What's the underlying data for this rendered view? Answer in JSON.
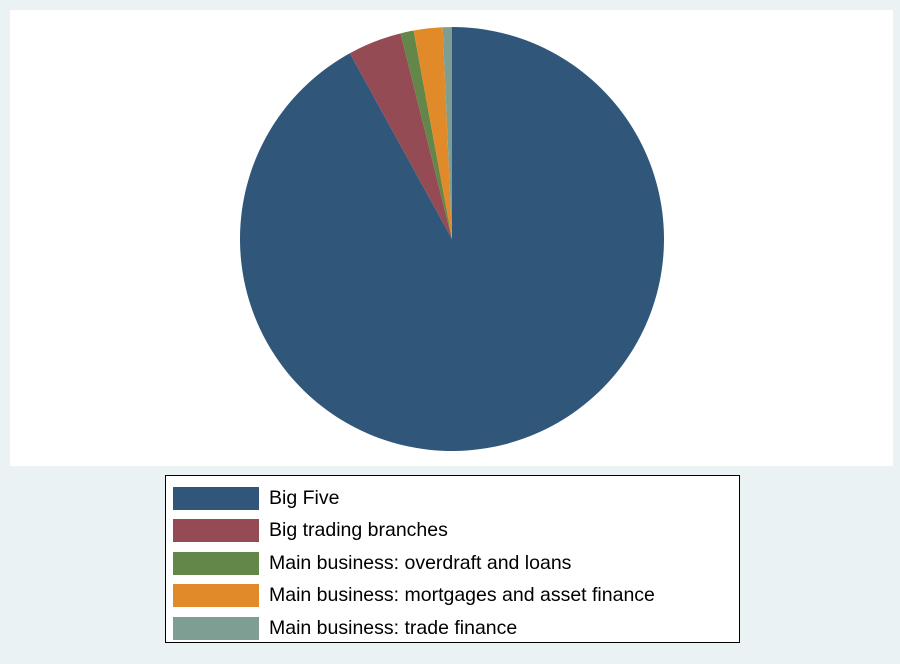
{
  "chart_data": {
    "type": "pie",
    "title": "",
    "slices": [
      {
        "label": "Big Five",
        "value": 92.0,
        "color": "#30577a"
      },
      {
        "label": "Big trading branches",
        "value": 4.1,
        "color": "#954b53"
      },
      {
        "label": "Main business: overdraft and loans",
        "value": 1.0,
        "color": "#638748"
      },
      {
        "label": "Main business: mortgages and asset finance",
        "value": 2.2,
        "color": "#e08a2a"
      },
      {
        "label": "Main business: trade finance",
        "value": 0.7,
        "color": "#7e9e93"
      }
    ],
    "legend_position": "bottom",
    "start_angle": "12 o'clock",
    "direction": "clockwise"
  }
}
